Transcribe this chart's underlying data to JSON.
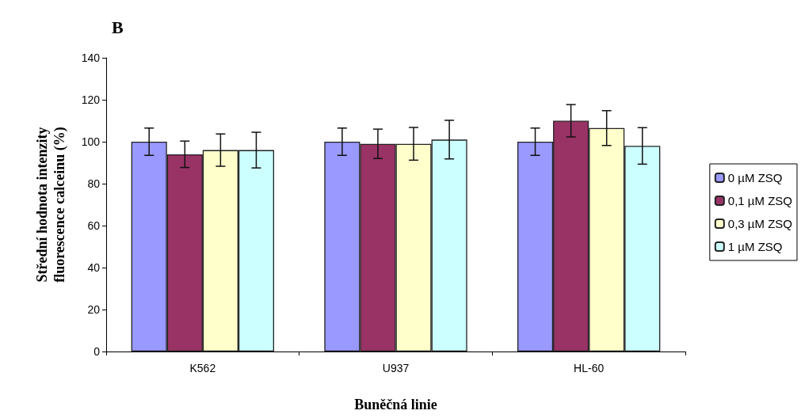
{
  "chart_data": {
    "type": "bar",
    "title": "B",
    "xlabel": "Buněčná linie",
    "ylabel": "Střední hodnota intenzity\nfluorescence calceinu (%)",
    "categories": [
      "K562",
      "U937",
      "HL-60"
    ],
    "series": [
      {
        "name": "0 µM ZSQ",
        "color": "#9999ff",
        "values": [
          100,
          100,
          100
        ],
        "errors": [
          6.5,
          6.5,
          6.5
        ]
      },
      {
        "name": "0,1 µM ZSQ",
        "color": "#993366",
        "values": [
          94,
          99,
          110
        ],
        "errors": [
          6.3,
          7,
          7.7
        ]
      },
      {
        "name": "0,3 µM ZSQ",
        "color": "#ffffcc",
        "values": [
          96,
          99,
          106.5
        ],
        "errors": [
          7.7,
          7.8,
          8.3
        ]
      },
      {
        "name": "1 µM ZSQ",
        "color": "#ccffff",
        "values": [
          96,
          101,
          98
        ],
        "errors": [
          8.5,
          9.2,
          8.7
        ]
      }
    ],
    "ylim": [
      0,
      140
    ],
    "yticks": [
      0,
      20,
      40,
      60,
      80,
      100,
      120,
      140
    ],
    "grid": false,
    "legend": "right"
  }
}
